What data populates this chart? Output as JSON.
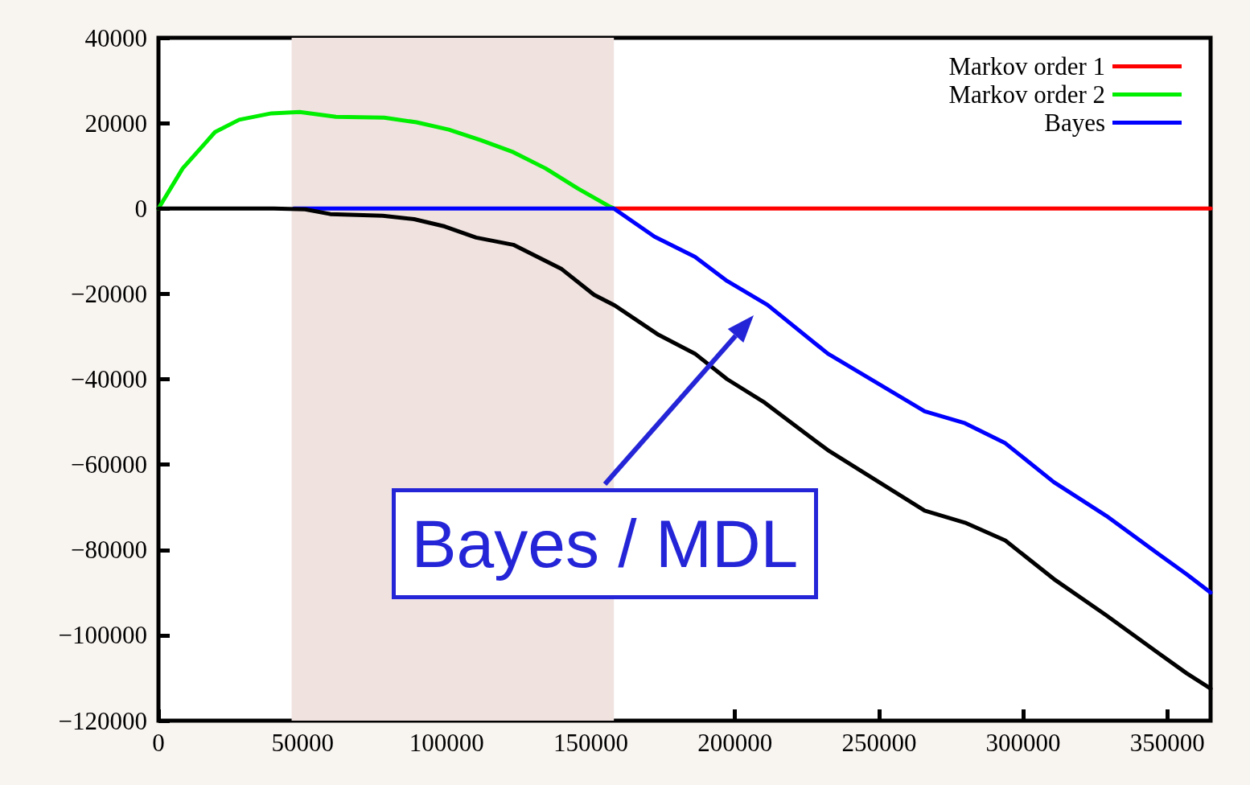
{
  "chart_data": {
    "type": "line",
    "xlim": [
      0,
      365000
    ],
    "ylim": [
      -120000,
      40000
    ],
    "xticks": [
      0,
      50000,
      100000,
      150000,
      200000,
      250000,
      300000,
      350000
    ],
    "yticks": [
      -120000,
      -100000,
      -80000,
      -60000,
      -40000,
      -20000,
      0,
      20000,
      40000
    ],
    "grid": false,
    "legend": "top right",
    "marker": "none",
    "line_style": "solid",
    "bands": [
      {
        "axis": "x",
        "from": 46200,
        "to": 158000,
        "color": "#efe2df"
      }
    ],
    "annotations": [
      "Bayes / MDL"
    ],
    "series": [
      {
        "name": "Markov order 1",
        "color": "#ff0000",
        "x": [
          158000,
          365000
        ],
        "values": [
          0,
          0
        ]
      },
      {
        "name": "Markov order 2",
        "color": "#00ee00",
        "x": [
          0,
          8400,
          19600,
          28000,
          39200,
          49000,
          61600,
          78300,
          89500,
          100700,
          111900,
          123100,
          134300,
          145500,
          156700,
          158000
        ],
        "values": [
          0,
          9400,
          17900,
          20800,
          22300,
          22600,
          21500,
          21300,
          20200,
          18500,
          16000,
          13200,
          9400,
          4700,
          400,
          0
        ]
      },
      {
        "name": "Bayes",
        "color": "#0000ff",
        "x": [
          47000,
          158000,
          172100,
          186100,
          197300,
          211300,
          232200,
          265800,
          279800,
          293800,
          310600,
          328800,
          347000,
          356700,
          365000
        ],
        "values": [
          0,
          0,
          -6600,
          -11300,
          -17000,
          -22600,
          -34000,
          -47500,
          -50300,
          -55000,
          -64100,
          -72000,
          -81000,
          -85700,
          -90000
        ]
      },
      {
        "color": "#000000",
        "x": [
          0,
          40000,
          50900,
          59600,
          77800,
          88700,
          99300,
          110200,
          123100,
          139900,
          151100,
          158000,
          173500,
          186100,
          197300,
          209900,
          232200,
          265800,
          279800,
          293800,
          310600,
          328800,
          347000,
          356700,
          365000
        ],
        "values": [
          0,
          0,
          -200,
          -1300,
          -1700,
          -2500,
          -4200,
          -6800,
          -8500,
          -14200,
          -20200,
          -22600,
          -29600,
          -34000,
          -40000,
          -45300,
          -56600,
          -70800,
          -73600,
          -77800,
          -86800,
          -95300,
          -104200,
          -108900,
          -112500
        ]
      }
    ]
  }
}
